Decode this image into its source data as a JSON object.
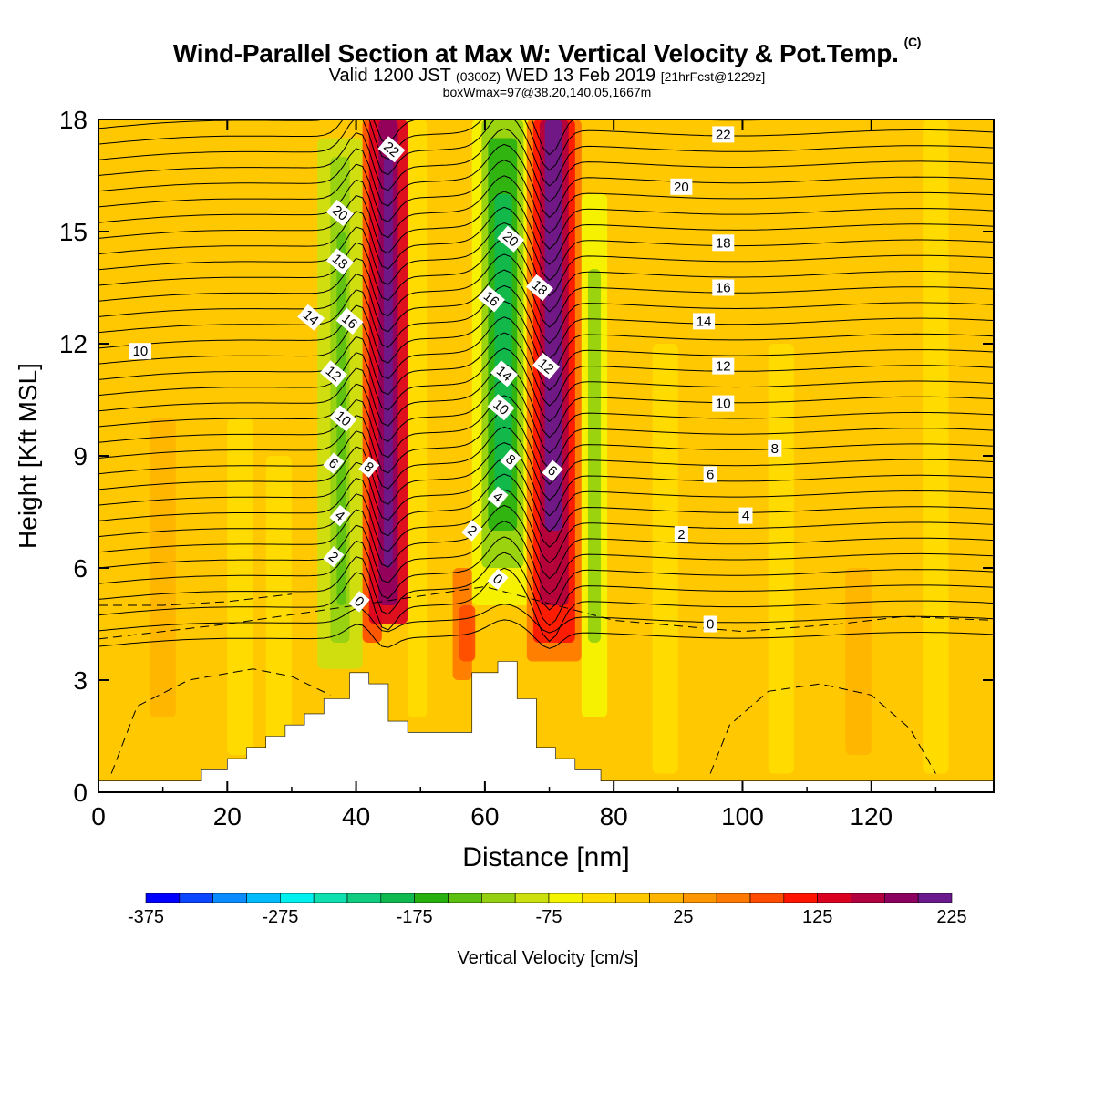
{
  "title": {
    "main": "Wind-Parallel Section at Max W: Vertical Velocity & Pot.Temp.",
    "copyright": "(C)",
    "valid_prefix": "Valid 1200 JST",
    "valid_utc": "(0300Z)",
    "valid_date": "WED 13 Feb 2019",
    "forecast": "[21hrFcst@1229z]",
    "box_info": "boxWmax=97@38.20,140.05,1667m"
  },
  "chart_data": {
    "type": "heatmap",
    "xlabel": "Distance [nm]",
    "ylabel": "Height [Kft MSL]",
    "xlim": [
      0,
      139
    ],
    "ylim": [
      0,
      18
    ],
    "x_ticks": [
      0,
      20,
      40,
      60,
      80,
      100,
      120
    ],
    "y_ticks": [
      0,
      3,
      6,
      9,
      12,
      15,
      18
    ],
    "colorbar": {
      "label": "Vertical Velocity [cm/s]",
      "tick_labels": [
        "-375",
        "-275",
        "-175",
        "-75",
        "25",
        "125",
        "225"
      ],
      "colors": [
        "#0000ff",
        "#0a46ff",
        "#0a8cff",
        "#00bcff",
        "#00f0f0",
        "#10e0b0",
        "#10cc80",
        "#10b850",
        "#28b010",
        "#5cc010",
        "#94d010",
        "#cce010",
        "#f4f400",
        "#ffdc00",
        "#ffc800",
        "#ffb400",
        "#ff9600",
        "#ff7800",
        "#ff4c00",
        "#ff1400",
        "#dc0020",
        "#b00040",
        "#8c0060",
        "#6a1a8c"
      ]
    },
    "features": [
      {
        "name": "updraft",
        "x_center": 45,
        "peak_cm_s": 180
      },
      {
        "name": "downdraft",
        "x_center": 63,
        "peak_cm_s": -160
      },
      {
        "name": "updraft",
        "x_center": 72,
        "peak_cm_s": 230
      },
      {
        "name": "downdraft",
        "x_center": 38,
        "peak_cm_s": -110
      }
    ],
    "terrain": {
      "x": [
        0,
        16,
        20,
        23,
        26,
        29,
        32,
        35,
        39,
        42,
        45,
        48,
        52,
        58,
        62,
        65,
        68,
        71,
        74,
        78,
        81,
        139
      ],
      "top_kft": [
        0.3,
        0.6,
        0.9,
        1.2,
        1.5,
        1.8,
        2.1,
        2.5,
        3.2,
        2.9,
        1.9,
        1.6,
        1.6,
        3.2,
        3.5,
        2.5,
        1.2,
        0.9,
        0.6,
        0.3,
        0.3,
        0.3
      ]
    },
    "contour_labels": [
      {
        "text": "10",
        "x": 6.5,
        "y": 11.8
      },
      {
        "text": "14",
        "x": 33,
        "y": 12.7
      },
      {
        "text": "20",
        "x": 37.5,
        "y": 15.5
      },
      {
        "text": "18",
        "x": 37.5,
        "y": 14.2
      },
      {
        "text": "16",
        "x": 39,
        "y": 12.6
      },
      {
        "text": "12",
        "x": 36.5,
        "y": 11.2
      },
      {
        "text": "10",
        "x": 38,
        "y": 10.0
      },
      {
        "text": "6",
        "x": 36.5,
        "y": 8.8
      },
      {
        "text": "8",
        "x": 42,
        "y": 8.7
      },
      {
        "text": "4",
        "x": 37.5,
        "y": 7.4
      },
      {
        "text": "2",
        "x": 36.5,
        "y": 6.3
      },
      {
        "text": "0",
        "x": 40.5,
        "y": 5.1
      },
      {
        "text": "22",
        "x": 45.5,
        "y": 17.2
      },
      {
        "text": "20",
        "x": 64,
        "y": 14.8
      },
      {
        "text": "16",
        "x": 61,
        "y": 13.2
      },
      {
        "text": "18",
        "x": 68.5,
        "y": 13.5
      },
      {
        "text": "14",
        "x": 63,
        "y": 11.2
      },
      {
        "text": "12",
        "x": 69.5,
        "y": 11.4
      },
      {
        "text": "10",
        "x": 62.5,
        "y": 10.3
      },
      {
        "text": "8",
        "x": 64,
        "y": 8.9
      },
      {
        "text": "6",
        "x": 70.5,
        "y": 8.6
      },
      {
        "text": "4",
        "x": 62,
        "y": 7.9
      },
      {
        "text": "2",
        "x": 58,
        "y": 7.0
      },
      {
        "text": "0",
        "x": 62,
        "y": 5.7
      },
      {
        "text": "22",
        "x": 97,
        "y": 17.6
      },
      {
        "text": "20",
        "x": 90.5,
        "y": 16.2
      },
      {
        "text": "18",
        "x": 97,
        "y": 14.7
      },
      {
        "text": "16",
        "x": 97,
        "y": 13.5
      },
      {
        "text": "14",
        "x": 94,
        "y": 12.6
      },
      {
        "text": "12",
        "x": 97,
        "y": 11.4
      },
      {
        "text": "10",
        "x": 97,
        "y": 10.4
      },
      {
        "text": "8",
        "x": 105,
        "y": 9.2
      },
      {
        "text": "6",
        "x": 95,
        "y": 8.5
      },
      {
        "text": "4",
        "x": 100.5,
        "y": 7.4
      },
      {
        "text": "2",
        "x": 90.5,
        "y": 6.9
      },
      {
        "text": "0",
        "x": 95,
        "y": 4.5
      }
    ]
  }
}
